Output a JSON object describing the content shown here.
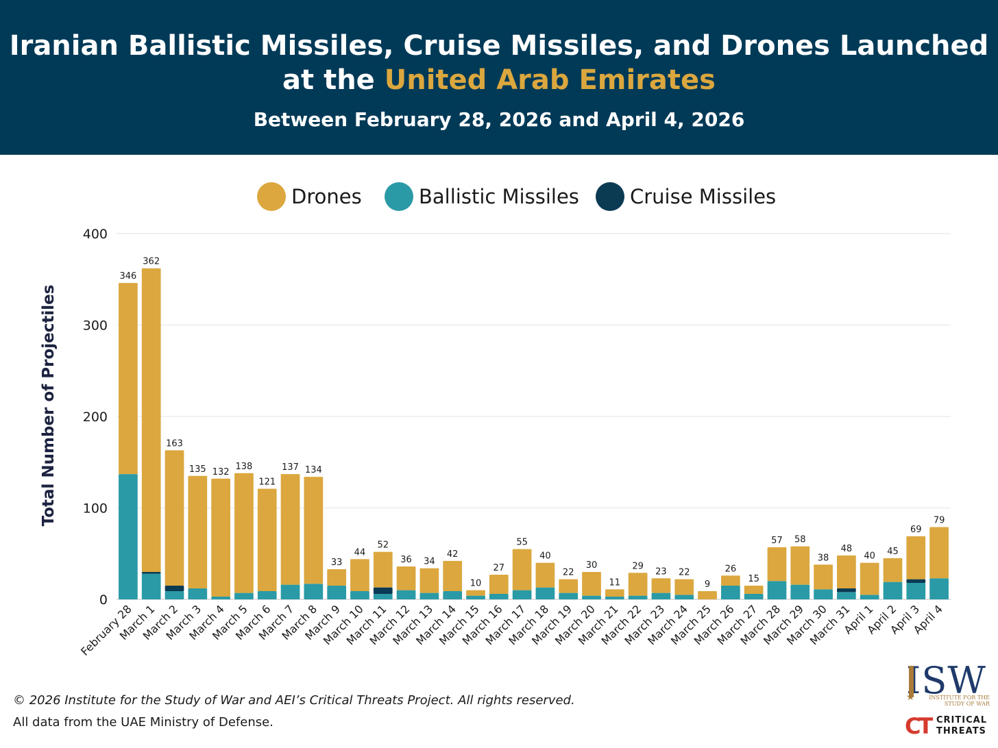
{
  "header": {
    "title_line1": "Iranian Ballistic Missiles, Cruise Missiles, and Drones Launched",
    "title_line2_prefix": "at the ",
    "title_line2_highlight": "United Arab Emirates",
    "subtitle": "Between February 28, 2026 and April 4, 2026"
  },
  "legend": [
    {
      "label": "Drones",
      "color": "#dba73e"
    },
    {
      "label": "Ballistic Missiles",
      "color": "#2a9aa6"
    },
    {
      "label": "Cruise Missiles",
      "color": "#0b3a53"
    }
  ],
  "chart_data": {
    "type": "bar",
    "stacked": true,
    "title": "Iranian Ballistic Missiles, Cruise Missiles, and Drones Launched at the United Arab Emirates",
    "subtitle": "Between February 28, 2026 and April 4, 2026",
    "xlabel": "",
    "ylabel": "Total Number of Projectiles",
    "ylim": [
      0,
      400
    ],
    "yticks": [
      0,
      100,
      200,
      300,
      400
    ],
    "grid": true,
    "legend_position": "top-center",
    "categories": [
      "February 28",
      "March 1",
      "March 2",
      "March 3",
      "March 4",
      "March 5",
      "March 6",
      "March 7",
      "March 8",
      "March 9",
      "March 10",
      "March 11",
      "March 12",
      "March 13",
      "March 14",
      "March 15",
      "March 16",
      "March 17",
      "March 18",
      "March 19",
      "March 20",
      "March 21",
      "March 22",
      "March 23",
      "March 24",
      "March 25",
      "March 26",
      "March 27",
      "March 28",
      "March 29",
      "March 30",
      "March 31",
      "April 1",
      "April 2",
      "April 3",
      "April 4"
    ],
    "series": [
      {
        "name": "Ballistic Missiles",
        "color": "#2a9aa6",
        "values": [
          137,
          28,
          9,
          12,
          3,
          7,
          9,
          16,
          17,
          15,
          9,
          6,
          10,
          7,
          9,
          4,
          6,
          10,
          13,
          7,
          4,
          3,
          4,
          7,
          5,
          0,
          15,
          6,
          20,
          16,
          11,
          8,
          5,
          19,
          18,
          23
        ]
      },
      {
        "name": "Cruise Missiles",
        "color": "#0b3a53",
        "values": [
          0,
          2,
          6,
          0,
          0,
          0,
          0,
          0,
          0,
          0,
          0,
          7,
          0,
          0,
          0,
          0,
          0,
          0,
          0,
          0,
          0,
          0,
          0,
          0,
          0,
          0,
          0,
          0,
          0,
          0,
          0,
          4,
          0,
          0,
          4,
          0
        ]
      },
      {
        "name": "Drones",
        "color": "#dba73e",
        "values": [
          209,
          332,
          148,
          123,
          129,
          131,
          112,
          121,
          117,
          18,
          35,
          39,
          26,
          27,
          33,
          6,
          21,
          45,
          27,
          15,
          26,
          8,
          25,
          16,
          17,
          9,
          11,
          9,
          37,
          42,
          27,
          36,
          35,
          26,
          47,
          56
        ]
      }
    ],
    "totals": [
      346,
      362,
      163,
      135,
      132,
      138,
      121,
      137,
      134,
      33,
      44,
      52,
      36,
      34,
      42,
      10,
      27,
      55,
      40,
      22,
      30,
      11,
      29,
      23,
      22,
      9,
      26,
      15,
      57,
      58,
      38,
      48,
      40,
      45,
      69,
      79
    ]
  },
  "footer": {
    "copyright": "© 2026 Institute for the Study of War and AEI’s Critical Threats Project. All rights reserved.",
    "source": "All data from the UAE Ministry of Defense."
  },
  "logos": {
    "isw_letters": "ISW",
    "isw_sub_line1": "INSTITUTE FOR THE",
    "isw_sub_line2": "STUDY OF WAR",
    "ct_mark": "CT",
    "ct_line1": "CRITICAL",
    "ct_line2": "THREATS"
  }
}
